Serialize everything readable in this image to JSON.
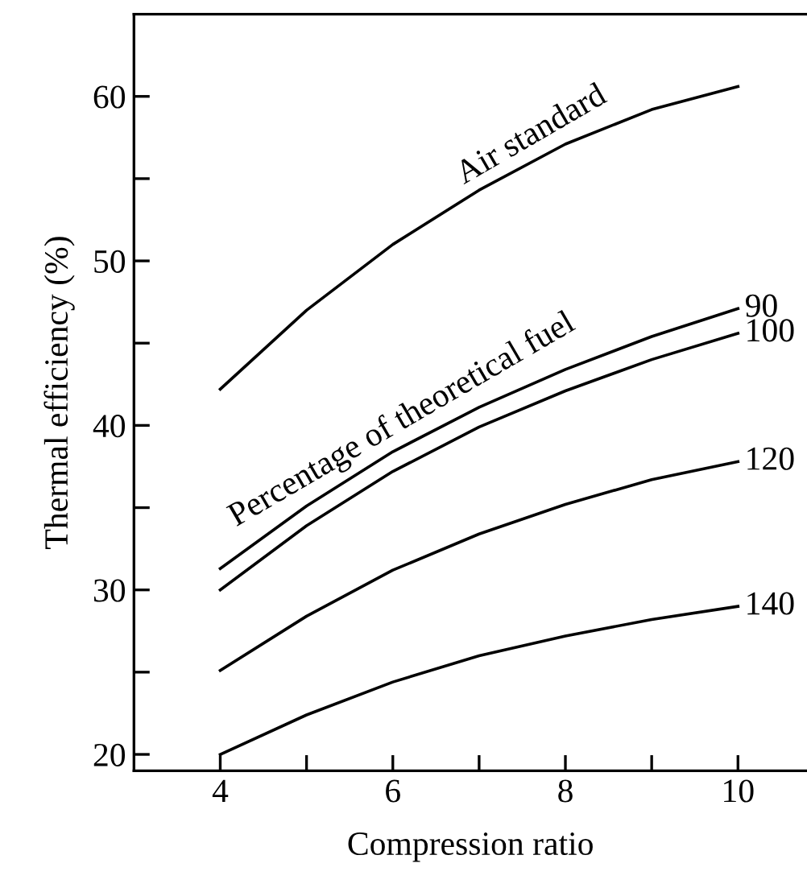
{
  "chart_data": {
    "type": "line",
    "xlabel": "Compression ratio",
    "ylabel": "Thermal efficiency (%)",
    "x": [
      4,
      5,
      6,
      7,
      8,
      9,
      10
    ],
    "series": [
      {
        "name": "Air standard",
        "color": "#000000",
        "values": [
          42.2,
          47.0,
          51.0,
          54.3,
          57.1,
          59.2,
          60.6
        ]
      },
      {
        "name": "90",
        "color": "#000000",
        "values": [
          31.3,
          35.1,
          38.4,
          41.1,
          43.4,
          45.4,
          47.1
        ]
      },
      {
        "name": "100",
        "color": "#000000",
        "values": [
          30.0,
          33.9,
          37.2,
          39.9,
          42.1,
          44.0,
          45.6
        ]
      },
      {
        "name": "120",
        "color": "#000000",
        "values": [
          25.1,
          28.4,
          31.2,
          33.4,
          35.2,
          36.7,
          37.8
        ]
      },
      {
        "name": "140",
        "color": "#000000",
        "values": [
          20.0,
          22.4,
          24.4,
          26.0,
          27.2,
          28.2,
          29.0
        ]
      }
    ],
    "annotations": [
      "Percentage of theoretical fuel"
    ],
    "xlim": [
      3,
      10.8
    ],
    "ylim": [
      19,
      65
    ],
    "xticks": [
      4,
      {
        "value": 5,
        "label": null
      },
      6,
      {
        "value": 7,
        "label": null
      },
      8,
      {
        "value": 9,
        "label": null
      },
      10
    ],
    "yticks": [
      20,
      {
        "value": 25,
        "label": null
      },
      30,
      {
        "value": 35,
        "label": null
      },
      40,
      {
        "value": 45,
        "label": null
      },
      50,
      {
        "value": 55,
        "label": null
      },
      60
    ],
    "grid": false,
    "legend": false,
    "marker": "none",
    "line_style": "solid"
  }
}
